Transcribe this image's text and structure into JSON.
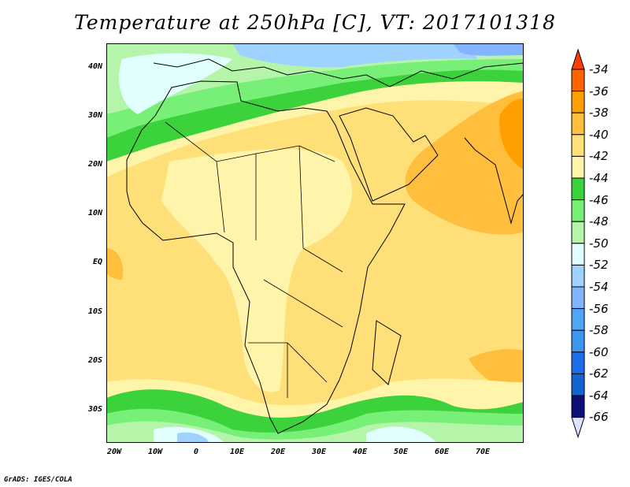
{
  "title": "Temperature at 250hPa [C], VT: 2017101318",
  "credit": "GrADS: IGES/COLA",
  "lat_labels": [
    "40N",
    "30N",
    "20N",
    "10N",
    "EQ",
    "10S",
    "20S",
    "30S"
  ],
  "lon_labels": [
    "20W",
    "10W",
    "0",
    "10E",
    "20E",
    "30E",
    "40E",
    "50E",
    "60E",
    "70E"
  ],
  "colorbar": {
    "labels": [
      "-34",
      "-36",
      "-38",
      "-40",
      "-42",
      "-44",
      "-46",
      "-48",
      "-50",
      "-52",
      "-54",
      "-56",
      "-58",
      "-60",
      "-62",
      "-64",
      "-66"
    ],
    "over_color": "#ff3c00",
    "under_color": "#e0e0ff",
    "colors": [
      "#ff6400",
      "#ffa000",
      "#ffbe3c",
      "#ffe078",
      "#fff5aa",
      "#3cd23c",
      "#78f078",
      "#b4f5aa",
      "#e1ffff",
      "#a0d2ff",
      "#82b4ff",
      "#50a5f5",
      "#3c96f0",
      "#1e6eeb",
      "#1464d2",
      "#0f0f78"
    ]
  }
}
